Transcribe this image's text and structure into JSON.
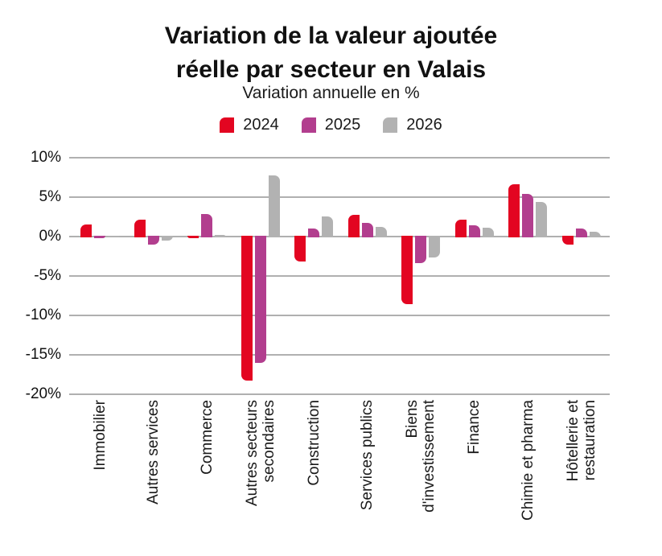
{
  "header": {
    "title_line1": "Variation de la valeur ajoutée",
    "title_line2": "réelle par secteur en Valais",
    "subtitle": "Variation annuelle en %"
  },
  "colors": {
    "red": "#e30521",
    "purple": "#b23e8e",
    "gray": "#b2b2b2",
    "grid": "#b0b0b0",
    "text": "#1a1a1a"
  },
  "chart_data": {
    "type": "bar",
    "title": "Variation de la valeur ajoutée réelle par secteur en Valais",
    "subtitle": "Variation annuelle en %",
    "unit": "%",
    "categories": [
      "Immobilier",
      "Autres services",
      "Commerce",
      "Autres secteurs\nsecondaires",
      "Construction",
      "Services publics",
      "Biens\nd'investissement",
      "Finance",
      "Chimie et pharma",
      "Hôtellerie et\nrestauration"
    ],
    "series": [
      {
        "name": "2024",
        "color_key": "red",
        "values": [
          1.5,
          2.1,
          -0.2,
          -18.3,
          -3.2,
          2.8,
          -8.6,
          2.1,
          6.6,
          -1.0
        ]
      },
      {
        "name": "2025",
        "color_key": "purple",
        "values": [
          -0.2,
          -1.0,
          2.9,
          -16.0,
          1.0,
          1.7,
          -3.4,
          1.4,
          5.4,
          1.0
        ]
      },
      {
        "name": "2026",
        "color_key": "gray",
        "values": [
          -0.1,
          -0.5,
          0.2,
          7.8,
          2.6,
          1.2,
          -2.7,
          1.1,
          4.4,
          0.6
        ]
      }
    ],
    "ylim": [
      -20,
      10
    ],
    "yticks": [
      10,
      5,
      0,
      -5,
      -10,
      -15,
      -20
    ],
    "ytick_suffix": "%",
    "grid": true,
    "legend_position": "top"
  }
}
